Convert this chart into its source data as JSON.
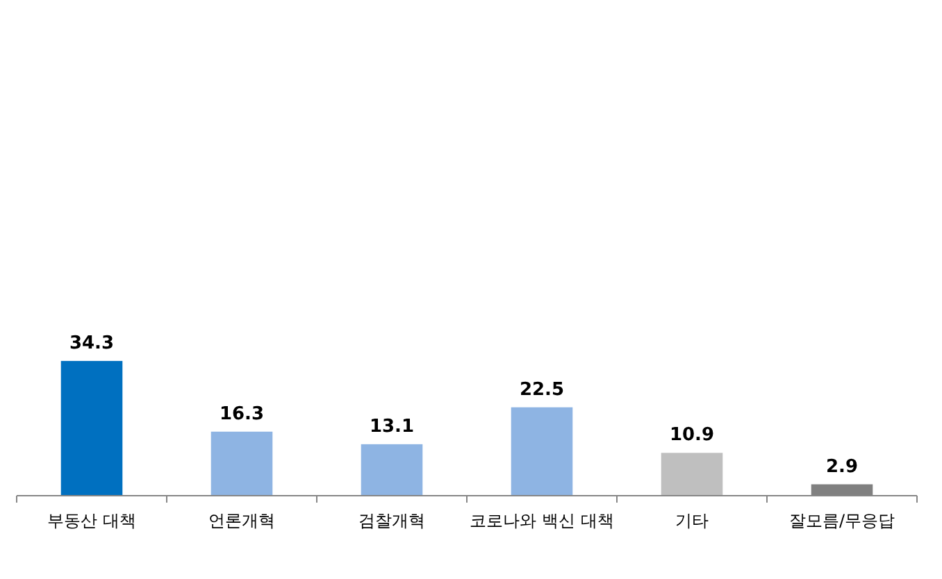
{
  "chart_data": {
    "type": "bar",
    "categories": [
      "부동산 대책",
      "언론개혁",
      "검찰개혁",
      "코로나와 백신 대책",
      "기타",
      "잘모름/무응답"
    ],
    "values": [
      34.3,
      16.3,
      13.1,
      22.5,
      10.9,
      2.9
    ],
    "colors": [
      "#0070c0",
      "#8eb4e3",
      "#8eb4e3",
      "#8eb4e3",
      "#bfbfbf",
      "#808080"
    ],
    "data_labels": true
  }
}
